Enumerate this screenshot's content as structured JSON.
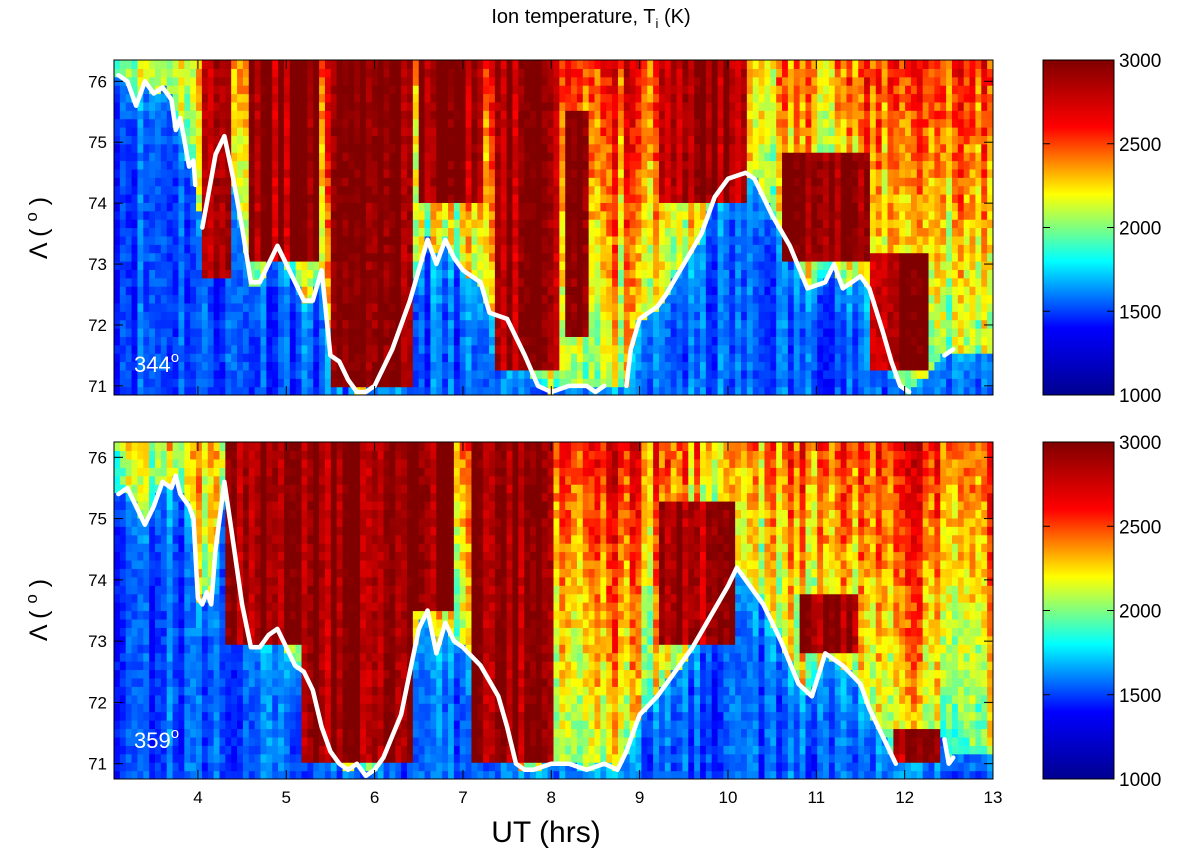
{
  "figure": {
    "title_main": "Ion temperature, T",
    "title_sub": "i",
    "title_unit": " (K)",
    "shared_xlabel": "UT (hrs)"
  },
  "colormap": {
    "name": "jet",
    "stops": [
      "#00008f",
      "#0000ff",
      "#00ffff",
      "#ffff00",
      "#ff0000",
      "#800000"
    ]
  },
  "boundary_color": "#ffffff",
  "chart_data": [
    {
      "type": "heatmap",
      "panel_label": "344",
      "panel_label_sup": "o",
      "xlabel": "",
      "ylabel": "Λ ( ",
      "ylabel_sup": "o",
      "ylabel_close": " )",
      "xlim": [
        3.05,
        13.0
      ],
      "ylim": [
        70.85,
        76.35
      ],
      "xticks": [
        4,
        5,
        6,
        7,
        8,
        9,
        10,
        11,
        12,
        13
      ],
      "xtick_labels_shown": false,
      "yticks": [
        71,
        72,
        73,
        74,
        75,
        76
      ],
      "colorbar": {
        "range": [
          1000,
          3000
        ],
        "ticks": [
          1000,
          1500,
          2000,
          2500,
          3000
        ]
      },
      "hot_regions": [
        {
          "ut": [
            4.05,
            4.35
          ],
          "lat": [
            72.8,
            76.35
          ]
        },
        {
          "ut": [
            4.6,
            5.4
          ],
          "lat": [
            73.0,
            76.35
          ]
        },
        {
          "ut": [
            5.5,
            6.45
          ],
          "lat": [
            71.0,
            76.35
          ]
        },
        {
          "ut": [
            6.5,
            7.2
          ],
          "lat": [
            74.0,
            76.35
          ]
        },
        {
          "ut": [
            7.35,
            8.1
          ],
          "lat": [
            71.2,
            76.35
          ]
        },
        {
          "ut": [
            8.15,
            8.4
          ],
          "lat": [
            71.8,
            75.5
          ]
        },
        {
          "ut": [
            9.2,
            10.2
          ],
          "lat": [
            74.0,
            76.35
          ]
        },
        {
          "ut": [
            10.6,
            11.6
          ],
          "lat": [
            73.0,
            74.8
          ]
        },
        {
          "ut": [
            11.6,
            12.3
          ],
          "lat": [
            71.2,
            73.2
          ]
        }
      ],
      "boundary_segments": [
        [
          [
            3.1,
            76.1
          ],
          [
            3.2,
            76.0
          ],
          [
            3.3,
            75.6
          ],
          [
            3.4,
            76.0
          ],
          [
            3.5,
            75.8
          ],
          [
            3.6,
            75.9
          ],
          [
            3.7,
            75.7
          ],
          [
            3.75,
            75.2
          ],
          [
            3.8,
            75.4
          ],
          [
            3.85,
            75.0
          ],
          [
            3.9,
            74.6
          ],
          [
            3.95,
            74.7
          ],
          [
            3.97,
            74.3
          ]
        ],
        [
          [
            4.05,
            73.6
          ],
          [
            4.1,
            74.0
          ],
          [
            4.15,
            74.4
          ],
          [
            4.2,
            74.8
          ],
          [
            4.3,
            75.1
          ],
          [
            4.4,
            74.4
          ],
          [
            4.5,
            73.6
          ],
          [
            4.6,
            72.7
          ],
          [
            4.7,
            72.7
          ],
          [
            4.8,
            73.0
          ],
          [
            4.9,
            73.3
          ],
          [
            5.0,
            73.0
          ],
          [
            5.1,
            72.7
          ],
          [
            5.2,
            72.4
          ],
          [
            5.3,
            72.4
          ],
          [
            5.4,
            72.9
          ],
          [
            5.5,
            71.5
          ],
          [
            5.6,
            71.4
          ],
          [
            5.7,
            71.1
          ],
          [
            5.8,
            70.9
          ],
          [
            5.9,
            70.9
          ],
          [
            6.0,
            71.0
          ],
          [
            6.2,
            71.6
          ],
          [
            6.4,
            72.4
          ],
          [
            6.6,
            73.4
          ],
          [
            6.7,
            73.0
          ],
          [
            6.8,
            73.4
          ],
          [
            6.9,
            73.1
          ],
          [
            7.0,
            72.9
          ],
          [
            7.2,
            72.7
          ],
          [
            7.3,
            72.2
          ],
          [
            7.5,
            72.1
          ],
          [
            7.7,
            71.5
          ],
          [
            7.85,
            71.0
          ],
          [
            8.0,
            70.9
          ],
          [
            8.2,
            71.0
          ],
          [
            8.4,
            71.0
          ],
          [
            8.5,
            70.9
          ],
          [
            8.6,
            71.0
          ]
        ],
        [
          [
            8.85,
            71.0
          ],
          [
            8.9,
            71.6
          ],
          [
            9.0,
            72.1
          ],
          [
            9.2,
            72.3
          ],
          [
            9.3,
            72.5
          ],
          [
            9.5,
            73.0
          ],
          [
            9.7,
            73.5
          ],
          [
            9.85,
            74.1
          ],
          [
            10.0,
            74.4
          ],
          [
            10.2,
            74.5
          ],
          [
            10.3,
            74.4
          ],
          [
            10.5,
            73.8
          ],
          [
            10.7,
            73.3
          ],
          [
            10.9,
            72.6
          ],
          [
            11.1,
            72.7
          ],
          [
            11.2,
            73.0
          ],
          [
            11.3,
            72.6
          ],
          [
            11.5,
            72.8
          ],
          [
            11.6,
            72.6
          ],
          [
            11.75,
            71.9
          ],
          [
            11.85,
            71.4
          ],
          [
            11.95,
            71.0
          ],
          [
            12.05,
            70.9
          ]
        ],
        [
          [
            12.45,
            71.5
          ],
          [
            12.55,
            71.6
          ]
        ]
      ]
    },
    {
      "type": "heatmap",
      "panel_label": "359",
      "panel_label_sup": "o",
      "xlabel": "UT (hrs)",
      "ylabel": "Λ ( ",
      "ylabel_sup": "o",
      "ylabel_close": " )",
      "xlim": [
        3.05,
        13.0
      ],
      "ylim": [
        70.75,
        76.25
      ],
      "xticks": [
        4,
        5,
        6,
        7,
        8,
        9,
        10,
        11,
        12,
        13
      ],
      "xtick_labels_shown": true,
      "yticks": [
        71,
        72,
        73,
        74,
        75,
        76
      ],
      "colorbar": {
        "range": [
          1000,
          3000
        ],
        "ticks": [
          1000,
          1500,
          2000,
          2500,
          3000
        ]
      },
      "hot_regions": [
        {
          "ut": [
            4.3,
            5.2
          ],
          "lat": [
            73.0,
            76.25
          ]
        },
        {
          "ut": [
            5.2,
            6.4
          ],
          "lat": [
            71.0,
            76.25
          ]
        },
        {
          "ut": [
            6.4,
            6.9
          ],
          "lat": [
            73.5,
            76.25
          ]
        },
        {
          "ut": [
            7.1,
            8.0
          ],
          "lat": [
            71.0,
            76.25
          ]
        },
        {
          "ut": [
            9.2,
            10.1
          ],
          "lat": [
            73.0,
            75.3
          ]
        },
        {
          "ut": [
            10.8,
            11.5
          ],
          "lat": [
            72.8,
            73.8
          ]
        },
        {
          "ut": [
            11.9,
            12.4
          ],
          "lat": [
            71.0,
            71.6
          ]
        }
      ],
      "boundary_segments": [
        [
          [
            3.1,
            75.4
          ],
          [
            3.2,
            75.5
          ],
          [
            3.3,
            75.2
          ],
          [
            3.4,
            74.9
          ],
          [
            3.5,
            75.2
          ],
          [
            3.6,
            75.6
          ],
          [
            3.7,
            75.5
          ],
          [
            3.75,
            75.7
          ],
          [
            3.8,
            75.4
          ],
          [
            3.9,
            75.2
          ],
          [
            3.95,
            75.0
          ],
          [
            4.0,
            73.7
          ],
          [
            4.05,
            73.6
          ],
          [
            4.1,
            73.8
          ],
          [
            4.15,
            73.6
          ],
          [
            4.2,
            74.5
          ],
          [
            4.3,
            75.6
          ],
          [
            4.4,
            74.6
          ],
          [
            4.5,
            73.6
          ],
          [
            4.6,
            72.9
          ],
          [
            4.7,
            72.9
          ],
          [
            4.8,
            73.1
          ],
          [
            4.9,
            73.2
          ],
          [
            5.0,
            72.9
          ],
          [
            5.1,
            72.6
          ],
          [
            5.2,
            72.5
          ],
          [
            5.3,
            72.2
          ],
          [
            5.4,
            71.6
          ],
          [
            5.5,
            71.2
          ],
          [
            5.6,
            71.0
          ],
          [
            5.7,
            70.9
          ],
          [
            5.8,
            71.0
          ],
          [
            5.9,
            70.8
          ],
          [
            6.0,
            70.9
          ],
          [
            6.1,
            71.1
          ],
          [
            6.3,
            71.8
          ],
          [
            6.4,
            72.5
          ],
          [
            6.5,
            73.2
          ],
          [
            6.6,
            73.5
          ],
          [
            6.7,
            72.8
          ],
          [
            6.8,
            73.3
          ],
          [
            6.9,
            73.0
          ],
          [
            7.0,
            72.9
          ],
          [
            7.2,
            72.6
          ],
          [
            7.4,
            72.1
          ],
          [
            7.5,
            71.6
          ],
          [
            7.6,
            71.0
          ],
          [
            7.7,
            70.9
          ],
          [
            7.8,
            70.9
          ],
          [
            8.0,
            71.0
          ],
          [
            8.2,
            71.0
          ],
          [
            8.4,
            70.9
          ],
          [
            8.6,
            71.0
          ],
          [
            8.75,
            70.9
          ],
          [
            8.85,
            71.2
          ],
          [
            9.0,
            71.8
          ],
          [
            9.2,
            72.1
          ],
          [
            9.4,
            72.5
          ],
          [
            9.6,
            72.9
          ],
          [
            9.8,
            73.4
          ],
          [
            10.0,
            73.9
          ],
          [
            10.1,
            74.2
          ],
          [
            10.2,
            74.0
          ],
          [
            10.4,
            73.6
          ],
          [
            10.6,
            73.0
          ],
          [
            10.8,
            72.3
          ],
          [
            10.95,
            72.1
          ],
          [
            11.1,
            72.8
          ],
          [
            11.3,
            72.6
          ],
          [
            11.5,
            72.3
          ],
          [
            11.6,
            71.9
          ],
          [
            11.7,
            71.6
          ],
          [
            11.8,
            71.3
          ],
          [
            11.9,
            71.0
          ]
        ],
        [
          [
            12.45,
            71.4
          ],
          [
            12.5,
            71.0
          ],
          [
            12.55,
            71.1
          ]
        ]
      ]
    }
  ]
}
